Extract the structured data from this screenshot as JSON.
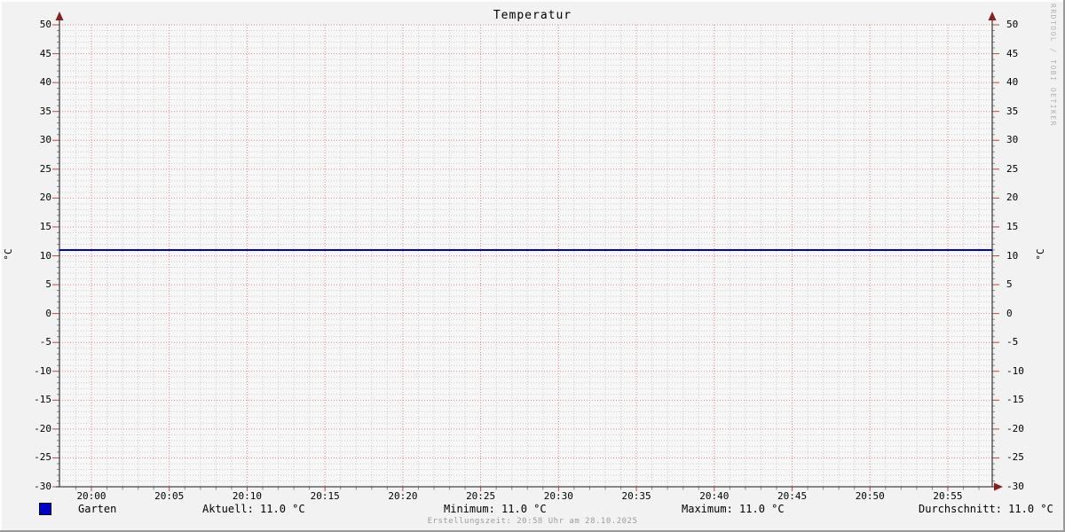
{
  "title": "Temperatur",
  "watermark": "RRDTOOL / TOBI OETIKER",
  "y_axis": {
    "unit": "°C"
  },
  "legend": {
    "series_label": "Garten",
    "aktuell": "Aktuell: 11.0 °C",
    "minimum": "Minimum: 11.0 °C",
    "maximum": "Maximum: 11.0 °C",
    "durchschnitt": "Durchschnitt: 11.0 °C"
  },
  "footer": {
    "text": "Erstellungszeit: 20:58 Uhr am 28.10.2025"
  },
  "colors": {
    "series": "#0000c8",
    "swatch": "#0000cc",
    "major_grid": "#e08a8a",
    "minor_grid": "#cccccc",
    "axis": "#444444",
    "arrow": "#8b1e1e",
    "tick_red": "#c04545",
    "tick_gray": "#888888",
    "background": "#f2f2f2",
    "canvas": "#f7f7f7"
  },
  "chart_data": {
    "type": "line",
    "title": "Temperatur",
    "xlabel": "",
    "ylabel": "°C",
    "ylim": [
      -30,
      50
    ],
    "y_major_step": 5,
    "y_minor_step": 1,
    "grid": true,
    "legend_position": "bottom",
    "x_ticks": [
      "20:00",
      "20:05",
      "20:10",
      "20:15",
      "20:20",
      "20:25",
      "20:30",
      "20:35",
      "20:40",
      "20:45",
      "20:50",
      "20:55"
    ],
    "x_minor_step_minutes": 1,
    "series": [
      {
        "name": "Garten",
        "color": "#0000c8",
        "value": 11.0,
        "points": [
          {
            "x": "20:00",
            "y": 11.0
          },
          {
            "x": "20:55",
            "y": 11.0
          }
        ]
      }
    ],
    "stats": {
      "aktuell": 11.0,
      "minimum": 11.0,
      "maximum": 11.0,
      "durchschnitt": 11.0,
      "unit": "°C"
    }
  }
}
